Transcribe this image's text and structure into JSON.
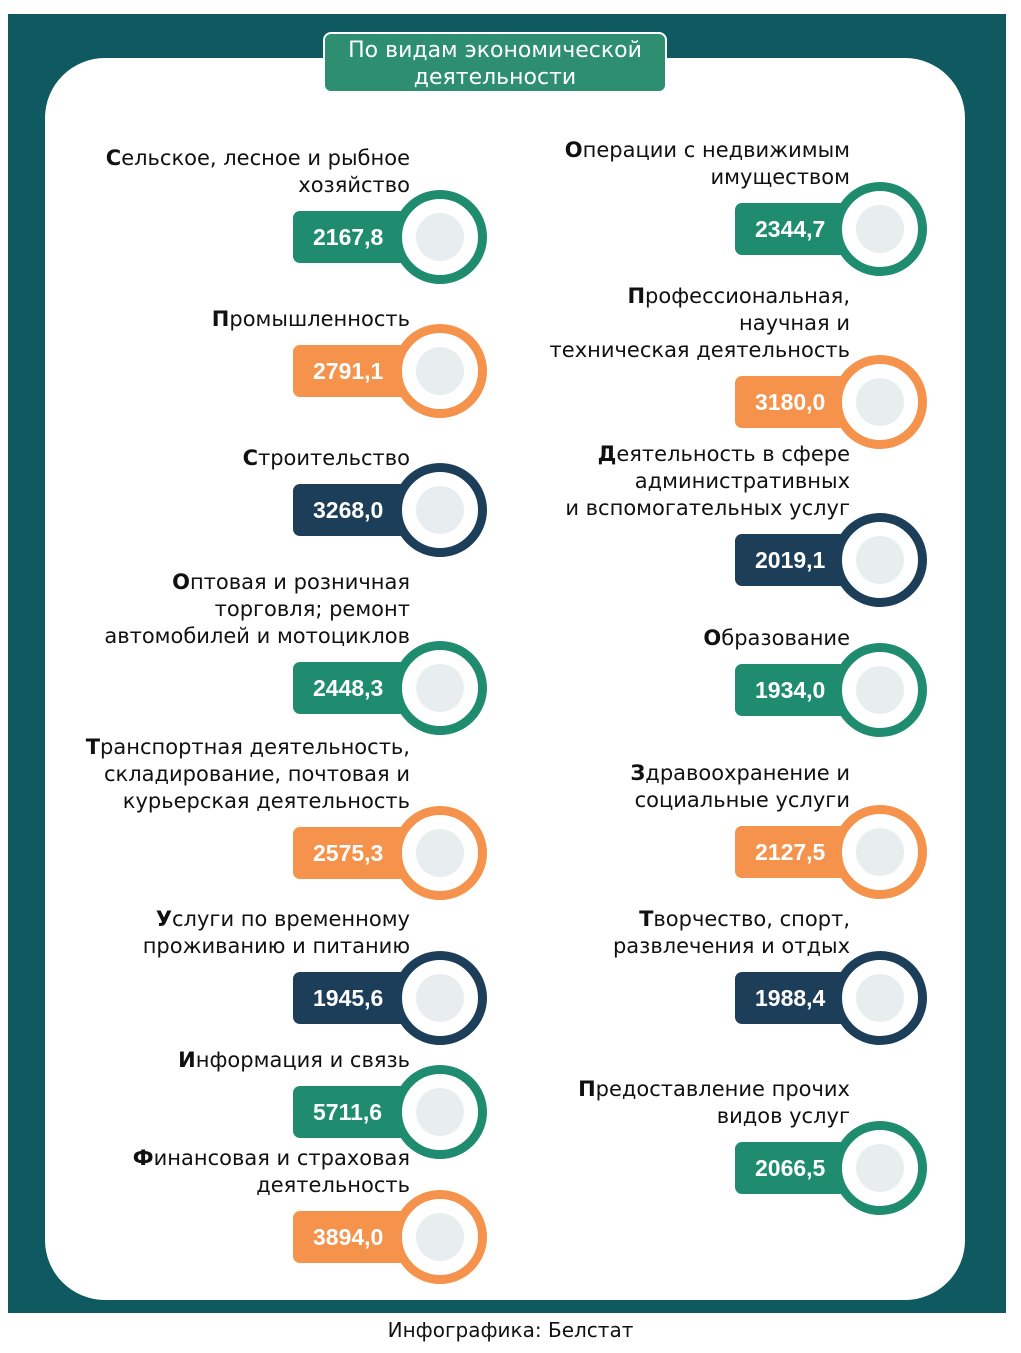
{
  "header": {
    "title": "По видам экономической\nдеятельности"
  },
  "left": [
    {
      "label": "Сельское, лесное и рыбное\nхозяйство",
      "value": "2167,8",
      "color": "#1f8c6f"
    },
    {
      "label": "Промышленность",
      "value": "2791,1",
      "color": "#f5924c"
    },
    {
      "label": "Строительство",
      "value": "3268,0",
      "color": "#1d3e58"
    },
    {
      "label": "Оптовая и розничная\nторговля; ремонт\nавтомобилей и мотоциклов",
      "value": "2448,3",
      "color": "#1f8c6f"
    },
    {
      "label": "Транспортная деятельность,\nскладирование, почтовая и\nкурьерская деятельность",
      "value": "2575,3",
      "color": "#f5924c"
    },
    {
      "label": "Услуги по временному\nпроживанию и питанию",
      "value": "1945,6",
      "color": "#1d3e58"
    },
    {
      "label": "Информация и связь",
      "value": "5711,6",
      "color": "#1f8c6f"
    },
    {
      "label": "Финансовая  и страховая\nдеятельность",
      "value": "3894,0",
      "color": "#f5924c"
    }
  ],
  "right": [
    {
      "label": "Операции с недвижимым\nимуществом",
      "value": "2344,7",
      "color": "#1f8c6f"
    },
    {
      "label": "Профессиональная,\nнаучная и\nтехническая деятельность",
      "value": "3180,0",
      "color": "#f5924c"
    },
    {
      "label": "Деятельность в сфере\nадминистративных\nи вспомогательных услуг",
      "value": "2019,1",
      "color": "#1d3e58"
    },
    {
      "label": "Образование",
      "value": "1934,0",
      "color": "#1f8c6f"
    },
    {
      "label": "Здравоохранение и\nсоциальные услуги",
      "value": "2127,5",
      "color": "#f5924c"
    },
    {
      "label": "Творчество, спорт,\nразвлечения и отдых",
      "value": "1988,4",
      "color": "#1d3e58"
    },
    {
      "label": "Предоставление прочих\nвидов услуг",
      "value": "2066,5",
      "color": "#1f8c6f"
    }
  ],
  "footer": {
    "source": "Инфографика: Белстат"
  }
}
